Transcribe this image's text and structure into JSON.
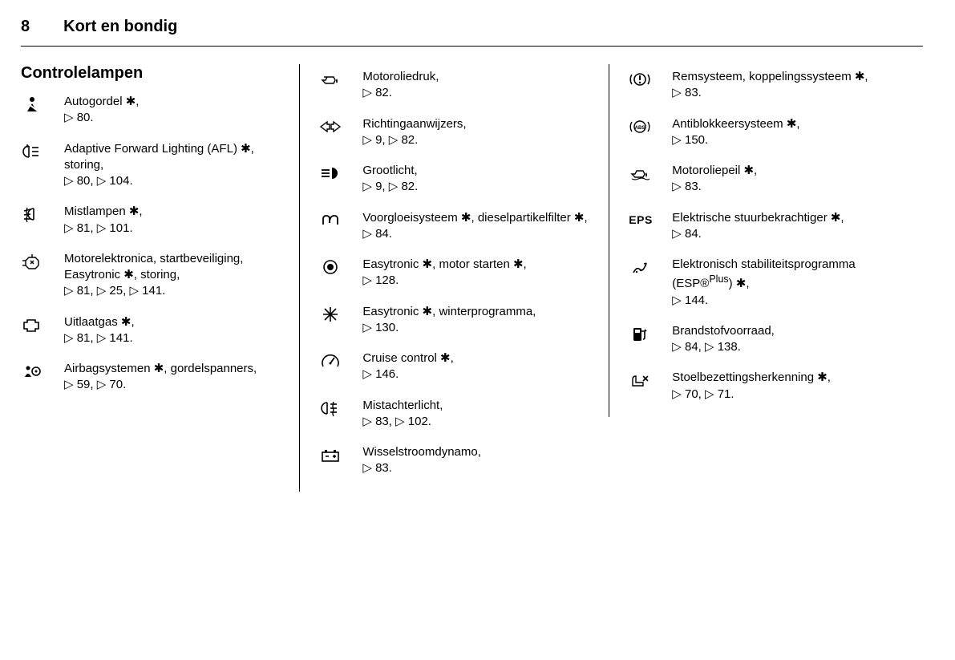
{
  "page_number": "8",
  "chapter_title": "Kort en bondig",
  "section_title": "Controlelampen",
  "arrow_glyph": "▷",
  "asterisk_glyph": "✱",
  "colors": {
    "text": "#000000",
    "background": "#ffffff",
    "rule": "#000000"
  },
  "typography": {
    "body_fontsize_pt": 11,
    "heading_fontsize_pt": 15,
    "font_family": "Helvetica Neue / Futura"
  },
  "columns": [
    {
      "items": [
        {
          "icon": "seatbelt-icon",
          "desc": "Autogordel ✱,",
          "ref": "▷ 80."
        },
        {
          "icon": "afl-icon",
          "desc": "Adaptive Forward Lighting (AFL) ✱, storing,",
          "ref": "▷ 80, ▷ 104."
        },
        {
          "icon": "foglamp-front-icon",
          "desc": "Mistlampen ✱,",
          "ref": "▷ 81, ▷ 101."
        },
        {
          "icon": "engine-electronics-icon",
          "desc": "Motorelektronica, startbeveiliging, Easytronic ✱, storing,",
          "ref": "▷ 81, ▷ 25, ▷ 141."
        },
        {
          "icon": "exhaust-icon",
          "desc": "Uitlaatgas ✱,",
          "ref": "▷ 81, ▷ 141."
        },
        {
          "icon": "airbag-icon",
          "desc": "Airbagsystemen ✱, gordelspanners,",
          "ref": "▷ 59, ▷ 70."
        }
      ]
    },
    {
      "items": [
        {
          "icon": "oil-pressure-icon",
          "desc": "Motoroliedruk,",
          "ref": "▷ 82."
        },
        {
          "icon": "turn-signals-icon",
          "desc": "Richtingaanwijzers,",
          "ref": "▷ 9, ▷ 82."
        },
        {
          "icon": "high-beam-icon",
          "desc": "Grootlicht,",
          "ref": "▷ 9, ▷ 82."
        },
        {
          "icon": "preglow-icon",
          "desc": "Voorgloeisysteem ✱, dieselpartikelfilter ✱,",
          "ref": "▷ 84."
        },
        {
          "icon": "easytronic-start-icon",
          "desc": "Easytronic ✱, motor starten ✱,",
          "ref": "▷ 128."
        },
        {
          "icon": "winter-icon",
          "desc": "Easytronic ✱, winterprogramma,",
          "ref": "▷ 130."
        },
        {
          "icon": "cruise-icon",
          "desc": "Cruise control ✱,",
          "ref": "▷ 146."
        },
        {
          "icon": "foglamp-rear-icon",
          "desc": "Mistachterlicht,",
          "ref": "▷ 83, ▷ 102."
        },
        {
          "icon": "battery-icon",
          "desc": "Wisselstroomdynamo,",
          "ref": "▷ 83."
        }
      ]
    },
    {
      "items": [
        {
          "icon": "brake-icon",
          "desc": "Remsysteem, koppelingssysteem ✱,",
          "ref": "▷ 83."
        },
        {
          "icon": "abs-icon",
          "desc": "Antiblokkeersysteem ✱,",
          "ref": "▷ 150."
        },
        {
          "icon": "oil-level-icon",
          "desc": "Motoroliepeil ✱,",
          "ref": "▷ 83."
        },
        {
          "icon": "eps-icon",
          "desc": "Elektrische stuurbekrachtiger ✱,",
          "ref": "▷ 84."
        },
        {
          "icon": "esp-icon",
          "desc_html": "Elektronisch stabiliteitsprogramma (ESP®<sup>Plus</sup>) ✱,",
          "ref": "▷ 144."
        },
        {
          "icon": "fuel-icon",
          "desc": "Brandstofvoorraad,",
          "ref": "▷ 84, ▷ 138."
        },
        {
          "icon": "seat-occupancy-icon",
          "desc": "Stoelbezettingsherkenning ✱,",
          "ref": "▷ 70, ▷ 71."
        }
      ]
    }
  ]
}
